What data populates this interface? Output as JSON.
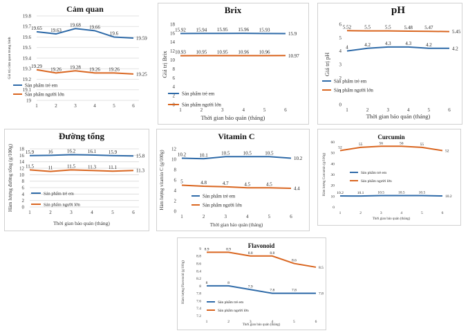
{
  "colors": {
    "child": "#2e6aa8",
    "adult": "#d9651f"
  },
  "chart_data": [
    {
      "id": "camquan",
      "type": "line",
      "title": "Cảm quan",
      "xlabel": "",
      "ylabel": "Giá trị cảm quan trung bình",
      "x": [
        1,
        2,
        3,
        4,
        5,
        6
      ],
      "ylim": [
        19,
        19.8
      ],
      "yticks": [
        "19",
        "19.1",
        "19.2",
        "19.3",
        "19.4",
        "19.5",
        "19.6",
        "19.7",
        "19.8"
      ],
      "grid": true,
      "series": [
        {
          "name": "Sản phẩm trẻ em",
          "values": [
            19.65,
            19.63,
            19.68,
            19.66,
            19.6,
            19.59
          ],
          "labels": [
            "19.65",
            "19.63",
            "19.68",
            "19.66",
            "19.6",
            "19.59"
          ]
        },
        {
          "name": "Sản phẩm người lớn",
          "values": [
            19.29,
            19.26,
            19.28,
            19.26,
            19.26,
            19.25
          ],
          "labels": [
            "19.29",
            "19.26",
            "19.28",
            "19.26",
            "19.26",
            "19.25"
          ]
        }
      ]
    },
    {
      "id": "brix",
      "type": "line",
      "title": "Brix",
      "xlabel": "Thời gian bảo quản (tháng)",
      "ylabel": "Giá trị Brix",
      "x": [
        1,
        2,
        3,
        4,
        5,
        6
      ],
      "ylim": [
        0,
        18
      ],
      "yticks": [
        "0",
        "2",
        "4",
        "6",
        "8",
        "10",
        "12",
        "14",
        "16",
        "18"
      ],
      "grid": false,
      "series": [
        {
          "name": "Sản phẩm trẻ em",
          "values": [
            15.92,
            15.94,
            15.95,
            15.96,
            15.93,
            15.9
          ],
          "labels": [
            "15.92",
            "15.94",
            "15.95",
            "15.96",
            "15.93",
            "15.9"
          ]
        },
        {
          "name": "Sản phẩm người lớn",
          "values": [
            10.93,
            10.95,
            10.95,
            10.96,
            10.96,
            10.97
          ],
          "labels": [
            "10.93",
            "10.95",
            "10.95",
            "10.96",
            "10.96",
            "10.97"
          ]
        }
      ]
    },
    {
      "id": "ph",
      "type": "line",
      "title": "pH",
      "xlabel": "Thời gian bảo quản (tháng)",
      "ylabel": "Giá trị pH",
      "x": [
        1,
        2,
        3,
        4,
        5,
        6
      ],
      "ylim": [
        0,
        6
      ],
      "yticks": [
        "0",
        "1",
        "2",
        "3",
        "4",
        "5",
        "6"
      ],
      "grid": false,
      "series": [
        {
          "name": "Sản phẩm trẻ em",
          "values": [
            4,
            4.2,
            4.3,
            4.3,
            4.2,
            4.2
          ],
          "labels": [
            "4",
            "4.2",
            "4.3",
            "4.3",
            "4.2",
            "4.2"
          ]
        },
        {
          "name": "Sản phẩm người lớn",
          "values": [
            5.52,
            5.5,
            5.5,
            5.48,
            5.47,
            5.45
          ],
          "labels": [
            "5.52",
            "5.5",
            "5.5",
            "5.48",
            "5.47",
            "5.45"
          ]
        }
      ]
    },
    {
      "id": "duongtong",
      "type": "line",
      "title": "Đường tổng",
      "xlabel": "Thời gian bảo quản (tháng)",
      "ylabel": "Hàm lượng đường tổng (g/100g)",
      "x": [
        1,
        2,
        3,
        4,
        5,
        6
      ],
      "ylim": [
        0,
        18
      ],
      "yticks": [
        "0",
        "2",
        "4",
        "6",
        "8",
        "10",
        "12",
        "14",
        "16",
        "18"
      ],
      "grid": true,
      "series": [
        {
          "name": "Sản phẩm trẻ em",
          "values": [
            15.9,
            16,
            16.2,
            16.1,
            15.9,
            15.8
          ],
          "labels": [
            "15.9",
            "16",
            "16.2",
            "16.1",
            "15.9",
            "15.8"
          ]
        },
        {
          "name": "Sản phẩm người lớn",
          "values": [
            11.5,
            11,
            11.5,
            11.3,
            11.1,
            11.3
          ],
          "labels": [
            "11.5",
            "11",
            "11.5",
            "11.3",
            "11.1",
            "11.3"
          ]
        }
      ]
    },
    {
      "id": "vitaminc",
      "type": "line",
      "title": "Vitamin C",
      "xlabel": "Thời gian bảo quản (tháng)",
      "ylabel": "Hàm lượng vitamin C (g/100g)",
      "x": [
        1,
        2,
        3,
        4,
        5,
        6
      ],
      "ylim": [
        0,
        12
      ],
      "yticks": [
        "0",
        "2",
        "4",
        "6",
        "8",
        "10",
        "12"
      ],
      "grid": false,
      "series": [
        {
          "name": "Sản phẩm trẻ em",
          "values": [
            10.2,
            10.1,
            10.5,
            10.5,
            10.5,
            10.2
          ],
          "labels": [
            "10.2",
            "10.1",
            "10.5",
            "10.5",
            "10.5",
            "10.2"
          ]
        },
        {
          "name": "Sản phẩm người lớn",
          "values": [
            5,
            4.8,
            4.7,
            4.5,
            4.5,
            4.4
          ],
          "labels": [
            "5",
            "4.8",
            "4.7",
            "4.5",
            "4.5",
            "4.4"
          ]
        }
      ]
    },
    {
      "id": "curcumin",
      "type": "line",
      "title": "Curcumin",
      "xlabel": "Thời gian bảo quản (tháng)",
      "ylabel": "Hàm lượng Curcumin (g/100g)",
      "x": [
        1,
        2,
        3,
        4,
        5,
        6
      ],
      "ylim": [
        0,
        60
      ],
      "yticks": [
        "0",
        "10",
        "20",
        "30",
        "40",
        "50",
        "60"
      ],
      "grid": false,
      "series": [
        {
          "name": "Sản phẩm trẻ em",
          "values": [
            10.2,
            10.1,
            10.5,
            10.5,
            10.5,
            10.2
          ],
          "labels": [
            "10.2",
            "10.1",
            "10.5",
            "10.5",
            "10.5",
            "10.2"
          ]
        },
        {
          "name": "Sản phẩm người lớn",
          "values": [
            52,
            55,
            56,
            56,
            55,
            52
          ],
          "labels": [
            "52",
            "55",
            "56",
            "56",
            "55",
            "52"
          ]
        }
      ]
    },
    {
      "id": "flavonoid",
      "type": "line",
      "title": "Flavonoid",
      "xlabel": "Thời gian bảo quản (tháng)",
      "ylabel": "Hàm lượng Flavonoid (g/100g)",
      "x": [
        1,
        2,
        3,
        4,
        5,
        6
      ],
      "ylim": [
        7.2,
        9
      ],
      "yticks": [
        "7.2",
        "7.4",
        "7.6",
        "7.8",
        "8",
        "8.2",
        "8.4",
        "8.6",
        "8.8",
        "9"
      ],
      "grid": false,
      "series": [
        {
          "name": "Sản phẩm trẻ em",
          "values": [
            8,
            8,
            7.9,
            7.8,
            7.8,
            7.8
          ],
          "labels": [
            "8",
            "8",
            "7.9",
            "7.8",
            "7.8",
            "7.8"
          ]
        },
        {
          "name": "Sản phẩm người lớn",
          "values": [
            8.9,
            8.9,
            8.8,
            8.8,
            8.6,
            8.5
          ],
          "labels": [
            "8.9",
            "8.9",
            "8.8",
            "8.8",
            "8.6",
            "8.5"
          ]
        }
      ]
    }
  ]
}
